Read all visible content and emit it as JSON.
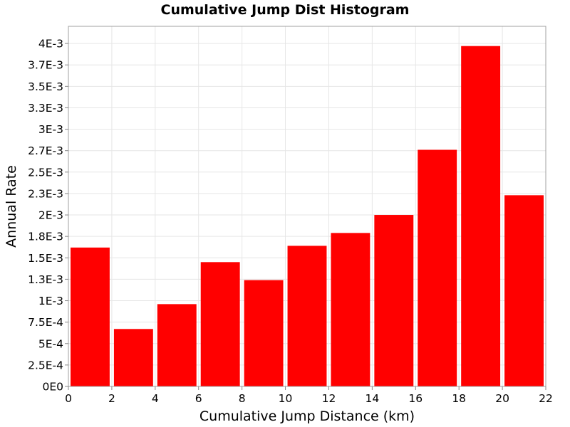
{
  "chart_data": {
    "type": "bar",
    "title": "Cumulative Jump Dist Histogram",
    "xlabel": "Cumulative Jump Distance (km)",
    "ylabel": "Annual Rate",
    "xlim": [
      0,
      22
    ],
    "ylim": [
      0,
      0.0042
    ],
    "bin_width": 2,
    "bins": [
      {
        "x0": 0,
        "x1": 2,
        "value": 0.00162
      },
      {
        "x0": 2,
        "x1": 4,
        "value": 0.00067
      },
      {
        "x0": 4,
        "x1": 6,
        "value": 0.00096
      },
      {
        "x0": 6,
        "x1": 8,
        "value": 0.00145
      },
      {
        "x0": 8,
        "x1": 10,
        "value": 0.00124
      },
      {
        "x0": 10,
        "x1": 12,
        "value": 0.00164
      },
      {
        "x0": 12,
        "x1": 14,
        "value": 0.00179
      },
      {
        "x0": 14,
        "x1": 16,
        "value": 0.002
      },
      {
        "x0": 16,
        "x1": 18,
        "value": 0.00276
      },
      {
        "x0": 18,
        "x1": 20,
        "value": 0.00397
      },
      {
        "x0": 20,
        "x1": 22,
        "value": 0.00223
      }
    ],
    "x_ticks": [
      {
        "value": 0,
        "label": "0"
      },
      {
        "value": 2,
        "label": "2"
      },
      {
        "value": 4,
        "label": "4"
      },
      {
        "value": 6,
        "label": "6"
      },
      {
        "value": 8,
        "label": "8"
      },
      {
        "value": 10,
        "label": "10"
      },
      {
        "value": 12,
        "label": "12"
      },
      {
        "value": 14,
        "label": "14"
      },
      {
        "value": 16,
        "label": "16"
      },
      {
        "value": 18,
        "label": "18"
      },
      {
        "value": 20,
        "label": "20"
      },
      {
        "value": 22,
        "label": "22"
      }
    ],
    "y_ticks": [
      {
        "value": 0,
        "label": "0E0"
      },
      {
        "value": 0.00025,
        "label": "2.5E-4"
      },
      {
        "value": 0.0005,
        "label": "5E-4"
      },
      {
        "value": 0.00075,
        "label": "7.5E-4"
      },
      {
        "value": 0.001,
        "label": "1E-3"
      },
      {
        "value": 0.00125,
        "label": "1.3E-3"
      },
      {
        "value": 0.0015,
        "label": "1.5E-3"
      },
      {
        "value": 0.00175,
        "label": "1.8E-3"
      },
      {
        "value": 0.002,
        "label": "2E-3"
      },
      {
        "value": 0.00225,
        "label": "2.3E-3"
      },
      {
        "value": 0.0025,
        "label": "2.5E-3"
      },
      {
        "value": 0.00275,
        "label": "2.7E-3"
      },
      {
        "value": 0.003,
        "label": "3E-3"
      },
      {
        "value": 0.00325,
        "label": "3.3E-3"
      },
      {
        "value": 0.0035,
        "label": "3.5E-3"
      },
      {
        "value": 0.00375,
        "label": "3.7E-3"
      },
      {
        "value": 0.004,
        "label": "4E-3"
      }
    ],
    "grid": true,
    "legend": "none",
    "bar_color": "#ff0000"
  }
}
